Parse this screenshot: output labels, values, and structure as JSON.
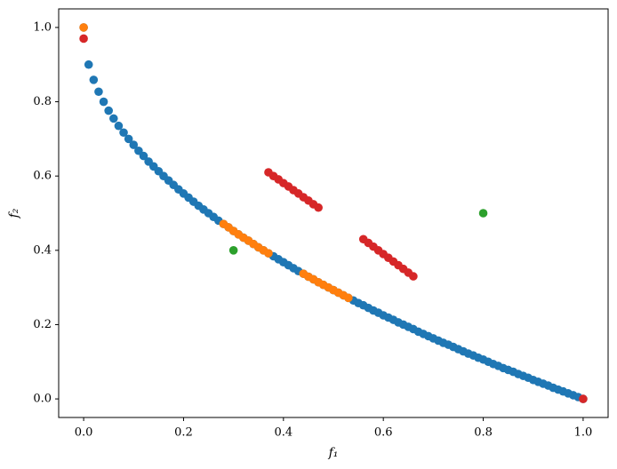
{
  "chart_data": {
    "type": "scatter",
    "xlabel": "f₁",
    "ylabel": "f₂",
    "xlim": [
      -0.05,
      1.05
    ],
    "ylim": [
      -0.05,
      1.05
    ],
    "xticks": [
      {
        "value": 0,
        "label": "0.0"
      },
      {
        "value": 0.2,
        "label": "0.2"
      },
      {
        "value": 0.4,
        "label": "0.4"
      },
      {
        "value": 0.6,
        "label": "0.6"
      },
      {
        "value": 0.8,
        "label": "0.8"
      },
      {
        "value": 1,
        "label": "1.0"
      }
    ],
    "yticks": [
      {
        "value": 0,
        "label": "0.0"
      },
      {
        "value": 0.2,
        "label": "0.2"
      },
      {
        "value": 0.4,
        "label": "0.4"
      },
      {
        "value": 0.6,
        "label": "0.6"
      },
      {
        "value": 0.8,
        "label": "0.8"
      },
      {
        "value": 1,
        "label": "1.0"
      }
    ],
    "series": [
      {
        "color": "#1f77b4",
        "x": [
          0,
          0.01,
          0.02,
          0.03,
          0.04,
          0.05,
          0.06,
          0.07,
          0.08,
          0.09,
          0.1,
          0.11,
          0.12,
          0.13,
          0.14,
          0.15,
          0.16,
          0.17,
          0.18,
          0.19,
          0.2,
          0.21,
          0.22,
          0.23,
          0.24,
          0.25,
          0.26,
          0.27,
          0.28,
          0.29,
          0.3,
          0.31,
          0.32,
          0.33,
          0.34,
          0.35,
          0.36,
          0.37,
          0.38,
          0.39,
          0.4,
          0.41,
          0.42,
          0.43,
          0.44,
          0.45,
          0.46,
          0.47,
          0.48,
          0.49,
          0.5,
          0.51,
          0.52,
          0.53,
          0.54,
          0.55,
          0.56,
          0.57,
          0.58,
          0.59,
          0.6,
          0.61,
          0.62,
          0.63,
          0.64,
          0.65,
          0.66,
          0.67,
          0.68,
          0.69,
          0.7,
          0.71,
          0.72,
          0.73,
          0.74,
          0.75,
          0.76,
          0.77,
          0.78,
          0.79,
          0.8,
          0.81,
          0.82,
          0.83,
          0.84,
          0.85,
          0.86,
          0.87,
          0.88,
          0.89,
          0.9,
          0.91,
          0.92,
          0.93,
          0.94,
          0.95,
          0.96,
          0.97,
          0.98,
          0.99,
          1
        ],
        "values": [
          1,
          0.9,
          0.859,
          0.827,
          0.8,
          0.776,
          0.755,
          0.735,
          0.717,
          0.7,
          0.684,
          0.668,
          0.654,
          0.639,
          0.626,
          0.613,
          0.6,
          0.588,
          0.576,
          0.564,
          0.553,
          0.542,
          0.531,
          0.52,
          0.51,
          0.5,
          0.49,
          0.48,
          0.471,
          0.462,
          0.452,
          0.443,
          0.434,
          0.426,
          0.417,
          0.408,
          0.4,
          0.392,
          0.384,
          0.376,
          0.368,
          0.36,
          0.352,
          0.344,
          0.337,
          0.329,
          0.322,
          0.314,
          0.307,
          0.3,
          0.293,
          0.286,
          0.279,
          0.272,
          0.265,
          0.258,
          0.252,
          0.245,
          0.238,
          0.232,
          0.225,
          0.219,
          0.213,
          0.206,
          0.2,
          0.194,
          0.188,
          0.181,
          0.175,
          0.169,
          0.163,
          0.157,
          0.151,
          0.146,
          0.14,
          0.134,
          0.128,
          0.122,
          0.117,
          0.111,
          0.106,
          0.1,
          0.094,
          0.089,
          0.083,
          0.078,
          0.073,
          0.067,
          0.062,
          0.057,
          0.051,
          0.046,
          0.041,
          0.036,
          0.03,
          0.025,
          0.02,
          0.015,
          0.01,
          0.005,
          0
        ]
      },
      {
        "color": "#ff7f0e",
        "x": [
          0,
          0.28,
          0.29,
          0.3,
          0.31,
          0.32,
          0.33,
          0.34,
          0.35,
          0.36,
          0.37,
          0.44,
          0.45,
          0.46,
          0.47,
          0.48,
          0.49,
          0.5,
          0.51,
          0.52,
          0.53
        ],
        "values": [
          1,
          0.471,
          0.462,
          0.452,
          0.443,
          0.434,
          0.426,
          0.417,
          0.408,
          0.4,
          0.392,
          0.337,
          0.329,
          0.322,
          0.314,
          0.307,
          0.3,
          0.293,
          0.286,
          0.279,
          0.272
        ]
      },
      {
        "color": "#2ca02c",
        "x": [
          0.3,
          0.8
        ],
        "values": [
          0.4,
          0.5
        ]
      },
      {
        "color": "#d62728",
        "x": [
          0,
          1,
          0.37,
          0.38,
          0.39,
          0.4,
          0.41,
          0.42,
          0.43,
          0.44,
          0.45,
          0.46,
          0.47,
          0.56,
          0.57,
          0.58,
          0.59,
          0.6,
          0.61,
          0.62,
          0.63,
          0.64,
          0.65,
          0.66
        ],
        "values": [
          0.97,
          0,
          0.61,
          0.6,
          0.591,
          0.581,
          0.572,
          0.562,
          0.553,
          0.543,
          0.534,
          0.524,
          0.515,
          0.43,
          0.42,
          0.41,
          0.4,
          0.39,
          0.38,
          0.37,
          0.36,
          0.35,
          0.34,
          0.33
        ]
      }
    ]
  }
}
